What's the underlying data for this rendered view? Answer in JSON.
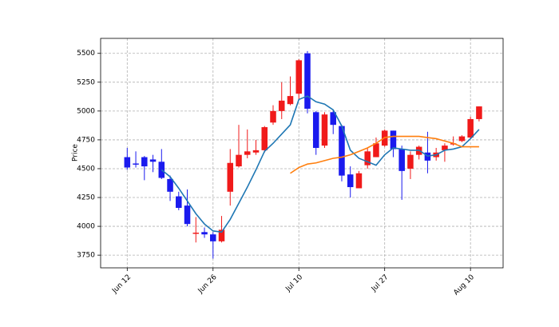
{
  "chart_data": {
    "type": "candlestick",
    "ylabel": "Price",
    "open": [
      4600,
      4545,
      4600,
      4580,
      4560,
      4410,
      4260,
      4180,
      3935,
      3950,
      3930,
      3870,
      4300,
      4520,
      4620,
      4640,
      4660,
      4900,
      5000,
      5060,
      5150,
      5500,
      4990,
      4700,
      4990,
      4870,
      4450,
      4330,
      4530,
      4600,
      4700,
      4830,
      4670,
      4500,
      4620,
      4640,
      4600,
      4660,
      4710,
      4740,
      4770,
      4930
    ],
    "high": [
      4680,
      4650,
      4610,
      4620,
      4670,
      4440,
      4300,
      4320,
      4080,
      3990,
      3950,
      4090,
      4670,
      4880,
      4840,
      4750,
      4870,
      5050,
      5250,
      5300,
      5450,
      5520,
      5000,
      4990,
      5000,
      4880,
      4520,
      4480,
      4680,
      4770,
      4840,
      4830,
      4700,
      4650,
      4700,
      4820,
      4680,
      4720,
      4780,
      4790,
      4950,
      5040
    ],
    "low": [
      4490,
      4510,
      4400,
      4470,
      4410,
      4220,
      4140,
      4000,
      3860,
      3900,
      3720,
      3860,
      4180,
      4510,
      4590,
      4620,
      4640,
      4880,
      4930,
      5050,
      5100,
      4980,
      4620,
      4680,
      4800,
      4390,
      4250,
      4330,
      4500,
      4600,
      4690,
      4600,
      4230,
      4410,
      4580,
      4460,
      4570,
      4560,
      4700,
      4730,
      4760,
      4910
    ],
    "close": [
      4510,
      4535,
      4520,
      4560,
      4420,
      4300,
      4160,
      4020,
      3945,
      3930,
      3870,
      3970,
      4550,
      4620,
      4650,
      4660,
      4860,
      5000,
      5090,
      5130,
      5440,
      5020,
      4680,
      4970,
      4880,
      4440,
      4340,
      4460,
      4650,
      4720,
      4830,
      4670,
      4480,
      4620,
      4690,
      4570,
      4640,
      4700,
      4720,
      4780,
      4930,
      5040
    ],
    "up_color": "#f01a1a",
    "down_color": "#1a1aee",
    "series": [
      {
        "color": "#1f77b4",
        "values": [
          null,
          null,
          null,
          null,
          4490,
          4430,
          4330,
          4220,
          4110,
          4020,
          3960,
          3950,
          4060,
          4200,
          4340,
          4490,
          4650,
          4720,
          4800,
          4880,
          5100,
          5130,
          5080,
          5060,
          5010,
          4870,
          4660,
          4590,
          4560,
          4530,
          4620,
          4680,
          4670,
          4660,
          4660,
          4610,
          4620,
          4660,
          4670,
          4690,
          4760,
          4840
        ]
      },
      {
        "color": "#ff7f0e",
        "values": [
          null,
          null,
          null,
          null,
          null,
          null,
          null,
          null,
          null,
          null,
          null,
          null,
          null,
          null,
          null,
          null,
          null,
          null,
          null,
          4460,
          4510,
          4540,
          4550,
          4570,
          4590,
          4600,
          4620,
          4650,
          4680,
          4720,
          4770,
          4780,
          4780,
          4780,
          4780,
          4770,
          4760,
          4740,
          4720,
          4690,
          4690,
          4690
        ]
      }
    ],
    "xlim": [
      -3.1,
      43.8
    ],
    "xticks": [
      {
        "value": 0,
        "label": "Jun 12"
      },
      {
        "value": 10,
        "label": "Jun 26"
      },
      {
        "value": 20,
        "label": "Jul 10"
      },
      {
        "value": 30,
        "label": "Jul 27"
      },
      {
        "value": 40,
        "label": "Aug 10"
      }
    ],
    "ylim": [
      3640,
      5630
    ],
    "yticks": [
      3750,
      4000,
      4250,
      4500,
      4750,
      5000,
      5250,
      5500
    ],
    "grid": true
  }
}
